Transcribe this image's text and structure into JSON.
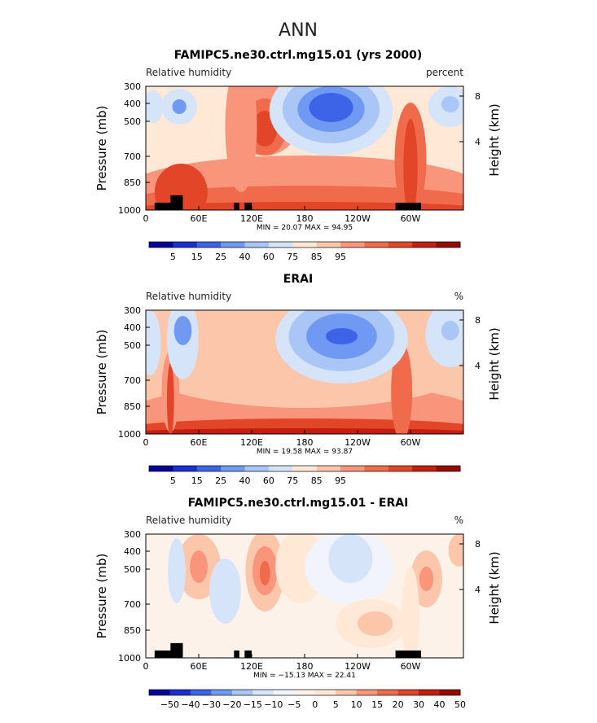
{
  "figure": {
    "season": "ANN"
  },
  "colors": {
    "ten": [
      "#08009b",
      "#1d2fd2",
      "#3d64e6",
      "#6f99f2",
      "#a9c6f7",
      "#d6e4fa",
      "#ffe8d6",
      "#fcc6aa",
      "#f8957a",
      "#ef6b4b",
      "#e24527",
      "#c41e10",
      "#940b06"
    ],
    "diff": [
      "#08009b",
      "#1d2fd2",
      "#3d64e6",
      "#6f99f2",
      "#a9c6f7",
      "#d6e4fa",
      "#f1f4fc",
      "#fdf2ea",
      "#ffe8d6",
      "#fcc6aa",
      "#f8957a",
      "#ef6b4b",
      "#e24527",
      "#c41e10",
      "#940b06"
    ],
    "land": "#000000"
  },
  "chart_data": [
    {
      "type": "heatmap",
      "title": "FAMIPC5.ne30.ctrl.mg15.01 (yrs 2000)",
      "variable": "Relative humidity",
      "units": "percent",
      "ylabel": "Pressure (mb)",
      "ylabel_right": "Height (km)",
      "y_ticks": [
        300,
        400,
        500,
        700,
        850,
        1000
      ],
      "y_ticks_right": [
        8,
        4
      ],
      "x_ticks": [
        "0",
        "60E",
        "120E",
        "180",
        "120W",
        "60W"
      ],
      "xlim": [
        0,
        360
      ],
      "stats": "MIN =   20.07  MAX =   94.95",
      "min": 20.07,
      "max": 94.95,
      "colorbar_labels": [
        "5",
        "15",
        "25",
        "40",
        "60",
        "75",
        "85",
        "95"
      ],
      "palette": "ten"
    },
    {
      "type": "heatmap",
      "title": "ERAI",
      "variable": "Relative humidity",
      "units": "%",
      "ylabel": "Pressure (mb)",
      "ylabel_right": "Height (km)",
      "y_ticks": [
        300,
        400,
        500,
        700,
        850,
        1000
      ],
      "y_ticks_right": [
        8,
        4
      ],
      "x_ticks": [
        "0",
        "60E",
        "120E",
        "180",
        "120W",
        "60W"
      ],
      "xlim": [
        0,
        360
      ],
      "stats": "MIN =   19.58  MAX =   93.87",
      "min": 19.58,
      "max": 93.87,
      "colorbar_labels": [
        "5",
        "15",
        "25",
        "40",
        "60",
        "75",
        "85",
        "95"
      ],
      "palette": "ten"
    },
    {
      "type": "heatmap",
      "title": "FAMIPC5.ne30.ctrl.mg15.01 - ERAI",
      "variable": "Relative humidity",
      "units": "%",
      "ylabel": "Pressure (mb)",
      "ylabel_right": "Height (km)",
      "y_ticks": [
        300,
        400,
        500,
        700,
        850,
        1000
      ],
      "y_ticks_right": [
        8,
        4
      ],
      "x_ticks": [
        "0",
        "60E",
        "120E",
        "180",
        "120W",
        "60W"
      ],
      "xlim": [
        0,
        360
      ],
      "stats": "MIN = −15.13  MAX =   22.41",
      "min": -15.13,
      "max": 22.41,
      "colorbar_labels": [
        "−50",
        "−40",
        "−30",
        "−20",
        "−15",
        "−10",
        "−5",
        "0",
        "5",
        "10",
        "15",
        "20",
        "30",
        "40",
        "50"
      ],
      "palette": "diff"
    }
  ]
}
